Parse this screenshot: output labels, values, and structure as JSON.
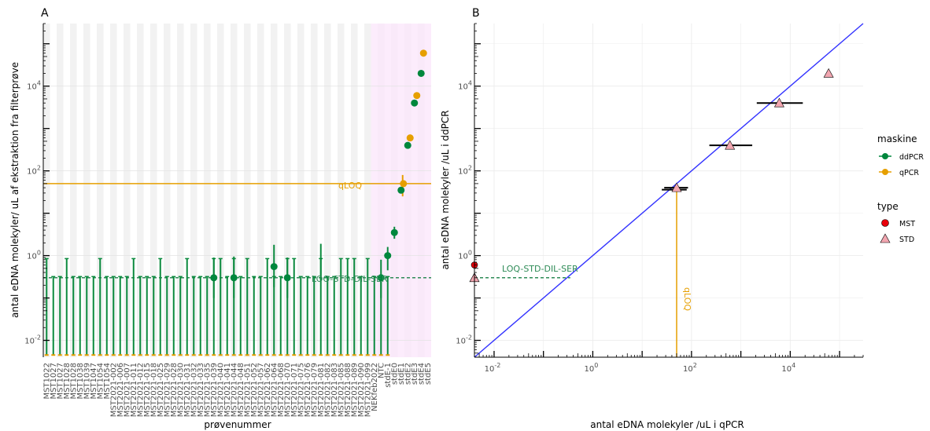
{
  "chart_data": [
    {
      "panel": "A",
      "type": "scatter",
      "xlabel": "prøvenummer",
      "ylabel": "antal eDNA molekyler/ uL af ekstraktion fra filterprøve",
      "y_scale": "log10",
      "ylim": [
        0.004,
        300000
      ],
      "yticks": [
        "10^-2",
        "10^0",
        "10^2",
        "10^4"
      ],
      "grid": "alternating vertical bands; standards region shaded pink",
      "categories": [
        "MST1022",
        "MST1027",
        "MST1027",
        "MST1028",
        "MST1028",
        "MST1038",
        "MST1039",
        "MST1047",
        "MST1054",
        "MST1054",
        "MST2021-002",
        "MST2021-006",
        "MST2021-007",
        "MST2021-011",
        "MST2021-012",
        "MST2021-015",
        "MST2021-018",
        "MST2021-025",
        "MST2021-029",
        "MST2021-028",
        "MST2021-030",
        "MST2021-031",
        "MST2021-032",
        "MST2021-033",
        "MST2021-035",
        "MST2021-039",
        "MST2021-040",
        "MST2021-041",
        "MST2021-044",
        "MST2021-048",
        "MST2021-051",
        "MST2021-052",
        "MST2021-057",
        "MST2021-062",
        "MST2021-064",
        "MST2021-068",
        "MST2021-070",
        "MST2021-071",
        "MST2021-075",
        "MST2021-076",
        "MST2021-079",
        "MST2021-081",
        "MST2021-082",
        "MST2021-083",
        "MST2021-085",
        "MST2021-088",
        "MST2021-089",
        "MST2021-090",
        "MST2021-099",
        "NEKfeb2022",
        "NTC",
        "stdE-1",
        "stdE0",
        "stdE1",
        "stdE2",
        "stdE3",
        "stdE4",
        "stdE5"
      ],
      "series": [
        {
          "name": "ddPCR",
          "color": "#00873d",
          "points": [
            {
              "x": "MST2021-039",
              "y": 0.3
            },
            {
              "x": "MST2021-044",
              "y": 0.3
            },
            {
              "x": "MST2021-064",
              "y": 0.55
            },
            {
              "x": "MST2021-070",
              "y": 0.3
            },
            {
              "x": "NTC",
              "y": 0.3
            },
            {
              "x": "stdE-1",
              "y": 1.0
            },
            {
              "x": "stdE0",
              "y": 3.5
            },
            {
              "x": "stdE1",
              "y": 35
            },
            {
              "x": "stdE2",
              "y": 400
            },
            {
              "x": "stdE3",
              "y": 4000
            },
            {
              "x": "stdE4",
              "y": 20000
            }
          ]
        },
        {
          "name": "qPCR",
          "color": "#e69f00",
          "points": [
            {
              "x": "stdE1",
              "y": 50
            },
            {
              "x": "stdE2",
              "y": 600
            },
            {
              "x": "stdE3",
              "y": 6000
            },
            {
              "x": "stdE4",
              "y": 60000
            }
          ]
        }
      ],
      "hlines": [
        {
          "label": "qLOQ",
          "y": 50,
          "color": "#e69f00",
          "style": "solid"
        },
        {
          "label": "LOQ-STD-DIL-SER",
          "y": 0.3,
          "color": "#2e8b57",
          "style": "dashed"
        }
      ]
    },
    {
      "panel": "B",
      "type": "scatter",
      "xlabel": "antal eDNA molekyler /uL i qPCR",
      "ylabel": "antal eDNA molekyler /uL i ddPCR",
      "x_scale": "log10",
      "y_scale": "log10",
      "xlim": [
        0.004,
        300000
      ],
      "ylim": [
        0.004,
        300000
      ],
      "xticks": [
        "10^-2",
        "10^0",
        "10^2",
        "10^4"
      ],
      "yticks": [
        "10^-2",
        "10^0",
        "10^2",
        "10^4"
      ],
      "grid": true,
      "points": [
        {
          "x": 50,
          "y": 40,
          "type": "STD"
        },
        {
          "x": 600,
          "y": 400,
          "type": "STD"
        },
        {
          "x": 6000,
          "y": 4000,
          "type": "STD"
        },
        {
          "x": 60000,
          "y": 20000,
          "type": "STD"
        },
        {
          "x": 0.004,
          "y": 0.3,
          "type": "STD"
        },
        {
          "x": 0.004,
          "y": 0.6,
          "type": "MST"
        }
      ],
      "identity_line": {
        "color": "#3333ff"
      },
      "hlines": [
        {
          "label": "LOQ-STD-DIL-SER",
          "y": 0.3,
          "color": "#2e8b57",
          "style": "dashed"
        }
      ],
      "vlines": [
        {
          "label": "qLOQ",
          "x": 50,
          "color": "#e69f00"
        }
      ]
    }
  ],
  "panel_letters": {
    "a": "A",
    "b": "B"
  },
  "legend": {
    "maskine_title": "maskine",
    "maskine_items": [
      {
        "label": "ddPCR",
        "color": "#00873d"
      },
      {
        "label": "qPCR",
        "color": "#e69f00"
      }
    ],
    "type_title": "type",
    "type_items": [
      {
        "label": "MST",
        "color": "#e8000b",
        "shape": "circle"
      },
      {
        "label": "STD",
        "color": "#f2a6b0",
        "shape": "triangle"
      }
    ]
  },
  "tick_base": "10",
  "tick_exponents": [
    "-2",
    "0",
    "2",
    "4"
  ]
}
